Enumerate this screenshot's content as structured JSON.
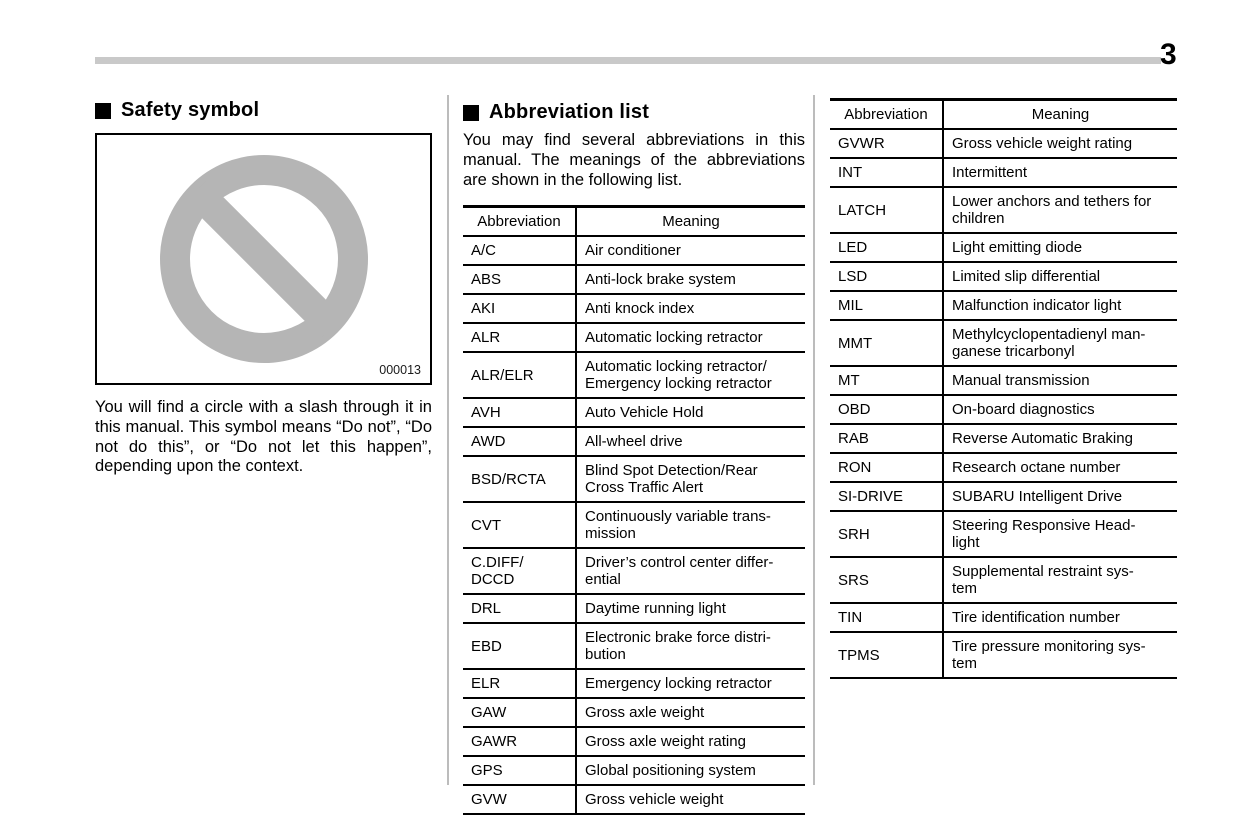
{
  "page": {
    "number": "3"
  },
  "left": {
    "heading": "Safety symbol",
    "figure_code": "000013",
    "symbol_color": "#b5b5b5",
    "paragraph": "You will find a circle with a slash through it in this manual. This symbol means “Do not”, “Do not do this”, or “Do not let this happen”, depending upon the context."
  },
  "middle": {
    "heading": "Abbreviation list",
    "intro": "You may find several abbreviations in this manual. The meanings of the abbreviations are shown in the following list.",
    "table": {
      "headers": [
        "Abbreviation",
        "Meaning"
      ],
      "rows": [
        [
          "A/C",
          "Air conditioner"
        ],
        [
          "ABS",
          "Anti-lock brake system"
        ],
        [
          "AKI",
          "Anti knock index"
        ],
        [
          "ALR",
          "Automatic locking retractor"
        ],
        [
          "ALR/ELR",
          "Automatic locking retractor/\nEmergency locking retractor"
        ],
        [
          "AVH",
          "Auto Vehicle Hold"
        ],
        [
          "AWD",
          "All-wheel drive"
        ],
        [
          "BSD/RCTA",
          "Blind Spot Detection/Rear\nCross Traffic Alert"
        ],
        [
          "CVT",
          "Continuously variable trans-\nmission"
        ],
        [
          "C.DIFF/\nDCCD",
          "Driver’s control center differ-\nential"
        ],
        [
          "DRL",
          "Daytime running light"
        ],
        [
          "EBD",
          "Electronic brake force distri-\nbution"
        ],
        [
          "ELR",
          "Emergency locking retractor"
        ],
        [
          "GAW",
          "Gross axle weight"
        ],
        [
          "GAWR",
          "Gross axle weight rating"
        ],
        [
          "GPS",
          "Global positioning system"
        ],
        [
          "GVW",
          "Gross vehicle weight"
        ]
      ]
    }
  },
  "right": {
    "table": {
      "headers": [
        "Abbreviation",
        "Meaning"
      ],
      "rows": [
        [
          "GVWR",
          "Gross vehicle weight rating"
        ],
        [
          "INT",
          "Intermittent"
        ],
        [
          "LATCH",
          "Lower anchors and tethers for\nchildren"
        ],
        [
          "LED",
          "Light emitting diode"
        ],
        [
          "LSD",
          "Limited slip differential"
        ],
        [
          "MIL",
          "Malfunction indicator light"
        ],
        [
          "MMT",
          "Methylcyclopentadienyl man-\nganese tricarbonyl"
        ],
        [
          "MT",
          "Manual transmission"
        ],
        [
          "OBD",
          "On-board diagnostics"
        ],
        [
          "RAB",
          "Reverse Automatic Braking"
        ],
        [
          "RON",
          "Research octane number"
        ],
        [
          "SI-DRIVE",
          "SUBARU Intelligent Drive"
        ],
        [
          "SRH",
          "Steering Responsive Head-\nlight"
        ],
        [
          "SRS",
          "Supplemental restraint sys-\ntem"
        ],
        [
          "TIN",
          "Tire identification number"
        ],
        [
          "TPMS",
          "Tire pressure monitoring sys-\ntem"
        ]
      ]
    }
  }
}
